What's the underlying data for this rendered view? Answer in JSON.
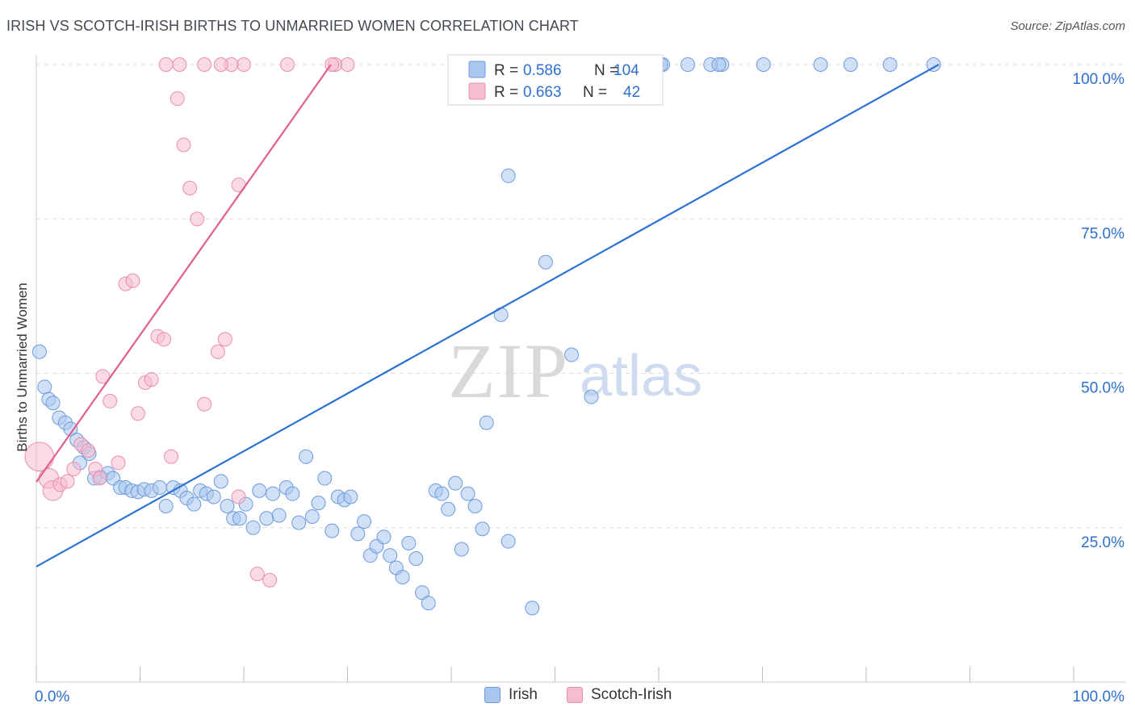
{
  "title": "IRISH VS SCOTCH-IRISH BIRTHS TO UNMARRIED WOMEN CORRELATION CHART",
  "source": "Source: ZipAtlas.com",
  "watermark": {
    "zip": "ZIP",
    "atlas": "atlas"
  },
  "colors": {
    "irish_fill": "#a9c6ee",
    "irish_stroke": "#6e9bdc",
    "irish_line": "#2d72d2",
    "scotch_fill": "#f6bcd0",
    "scotch_stroke": "#e98fae",
    "scotch_line": "#e0608a",
    "value_text": "#2d6fd0",
    "grid": "#dddddd"
  },
  "legend_top": {
    "rows": [
      {
        "r_label": "R =",
        "r_value": "0.586",
        "n_label": "N =",
        "n_value": "104"
      },
      {
        "r_label": "R =",
        "r_value": "0.663",
        "n_label": "N =",
        "n_value": "42"
      }
    ]
  },
  "legend_bottom": {
    "irish": "Irish",
    "scotch": "Scotch-Irish"
  },
  "chart_data": {
    "type": "scatter",
    "title": "IRISH VS SCOTCH-IRISH BIRTHS TO UNMARRIED WOMEN CORRELATION CHART",
    "xlabel": "",
    "ylabel": "Births to Unmarried Women",
    "xlim": [
      0,
      100
    ],
    "ylim": [
      0,
      100
    ],
    "x_tick_labels": [
      "0.0%",
      "100.0%"
    ],
    "y_tick_labels": [
      "25.0%",
      "50.0%",
      "75.0%",
      "100.0%"
    ],
    "y_ticks": [
      25,
      50,
      75,
      100
    ],
    "grid": true,
    "series": [
      {
        "name": "Irish",
        "R": 0.586,
        "N": 104,
        "trend": {
          "x": [
            0,
            87
          ],
          "y": [
            18.7,
            100
          ]
        },
        "x": [
          0.3,
          0.8,
          1.2,
          1.6,
          2.2,
          2.8,
          3.3,
          3.9,
          4.2,
          4.6,
          5.1,
          5.6,
          6.2,
          6.9,
          7.4,
          8.1,
          8.6,
          9.2,
          9.8,
          10.4,
          11.1,
          11.9,
          12.5,
          13.2,
          13.9,
          14.5,
          15.2,
          15.8,
          16.4,
          17.1,
          17.8,
          18.4,
          19.0,
          19.6,
          20.2,
          20.9,
          21.5,
          22.2,
          22.8,
          23.4,
          24.1,
          24.7,
          25.3,
          26.0,
          26.6,
          27.2,
          27.8,
          28.5,
          29.1,
          29.7,
          30.3,
          31.0,
          31.6,
          32.2,
          32.8,
          33.5,
          34.1,
          34.7,
          35.3,
          35.9,
          36.6,
          37.2,
          37.8,
          38.5,
          39.1,
          39.7,
          40.4,
          41.0,
          41.6,
          42.3,
          43.0,
          45.5,
          47.8,
          49.6,
          55.2,
          57.7,
          58.3,
          59.2,
          40.8,
          42.4,
          45.5,
          44.8,
          43.4,
          49.1,
          51.6,
          53.5,
          60.4,
          66.1,
          70.1,
          75.6,
          78.5,
          82.3,
          86.5,
          56.2,
          53.6,
          62.8,
          65.0,
          59.8,
          60.2,
          65.8,
          44.6,
          46.0,
          47.5,
          48.5
        ],
        "y": [
          53.5,
          47.8,
          45.8,
          45.2,
          42.8,
          42.0,
          41.0,
          39.2,
          35.5,
          38.0,
          37.0,
          33.0,
          33.2,
          33.8,
          33.0,
          31.5,
          31.5,
          31.0,
          30.8,
          31.2,
          31.0,
          31.5,
          28.5,
          31.5,
          31.0,
          29.8,
          28.8,
          31.0,
          30.5,
          30.0,
          32.5,
          28.5,
          26.5,
          26.5,
          28.8,
          25.0,
          31.0,
          26.5,
          30.5,
          27.0,
          31.5,
          30.5,
          25.8,
          36.5,
          26.8,
          29.0,
          33.0,
          24.5,
          30.0,
          29.5,
          30.0,
          24.0,
          26.0,
          20.5,
          22.0,
          23.5,
          20.5,
          18.5,
          17.0,
          22.5,
          20.0,
          14.5,
          12.8,
          31.0,
          30.5,
          28.0,
          32.2,
          21.5,
          30.5,
          28.5,
          24.8,
          22.8,
          12.0,
          100,
          100,
          100,
          100,
          100,
          97.0,
          100,
          82.0,
          59.5,
          42.0,
          68.0,
          53.0,
          46.2,
          100,
          100,
          100,
          100,
          100,
          100,
          100,
          100,
          100,
          100,
          100,
          100,
          100,
          100,
          100,
          100,
          100,
          100
        ],
        "sizes": [
          1,
          1,
          1,
          1,
          1,
          1,
          1,
          1,
          1,
          1,
          1,
          1,
          1,
          1,
          1,
          1,
          1,
          1,
          1,
          1,
          1,
          1,
          1,
          1,
          1,
          1,
          1,
          1,
          1,
          1,
          1,
          1,
          1,
          1,
          1,
          1,
          1,
          1,
          1,
          1,
          1,
          1,
          1,
          1,
          1,
          1,
          1,
          1,
          1,
          1,
          1,
          1,
          1,
          1,
          1,
          1,
          1,
          1,
          1,
          1,
          1,
          1,
          1,
          1,
          1,
          1,
          1,
          1,
          1,
          1,
          1,
          1,
          1,
          1,
          1,
          1,
          1,
          1,
          1,
          1,
          1,
          1,
          1,
          1,
          1,
          1,
          1,
          1,
          1,
          1,
          1,
          1,
          1,
          1,
          1,
          1,
          1,
          1,
          1,
          1,
          1,
          1,
          1,
          1
        ]
      },
      {
        "name": "Scotch-Irish",
        "R": 0.663,
        "N": 42,
        "trend": {
          "x": [
            0,
            28.4
          ],
          "y": [
            32.4,
            100
          ]
        },
        "x": [
          0.3,
          1.2,
          1.6,
          2.3,
          3.0,
          3.6,
          4.3,
          5.0,
          5.7,
          6.4,
          7.1,
          7.9,
          8.6,
          9.3,
          9.8,
          10.5,
          11.1,
          11.7,
          12.3,
          13.0,
          13.6,
          14.2,
          14.8,
          15.5,
          16.2,
          17.5,
          18.2,
          19.5,
          21.3,
          22.5,
          28.8,
          28.5,
          30.0,
          24.2,
          20.0,
          18.8,
          17.8,
          16.2,
          13.8,
          12.5,
          19.5,
          6.1
        ],
        "y": [
          36.5,
          33.0,
          31.0,
          32.0,
          32.5,
          34.5,
          38.5,
          37.5,
          34.5,
          49.5,
          45.5,
          35.5,
          64.5,
          65.0,
          43.5,
          48.5,
          49.0,
          56.0,
          55.5,
          36.5,
          94.5,
          87.0,
          80.0,
          75.0,
          45.0,
          53.5,
          55.5,
          80.5,
          17.5,
          16.5,
          100,
          100,
          100,
          100,
          100,
          100,
          100,
          100,
          100,
          100,
          30.0,
          33.0
        ],
        "sizes": [
          3,
          2,
          2,
          1,
          1,
          1,
          1,
          1,
          1,
          1,
          1,
          1,
          1,
          1,
          1,
          1,
          1,
          1,
          1,
          1,
          1,
          1,
          1,
          1,
          1,
          1,
          1,
          1,
          1,
          1,
          1,
          1,
          1,
          1,
          1,
          1,
          1,
          1,
          1,
          1,
          1,
          1
        ]
      }
    ]
  }
}
